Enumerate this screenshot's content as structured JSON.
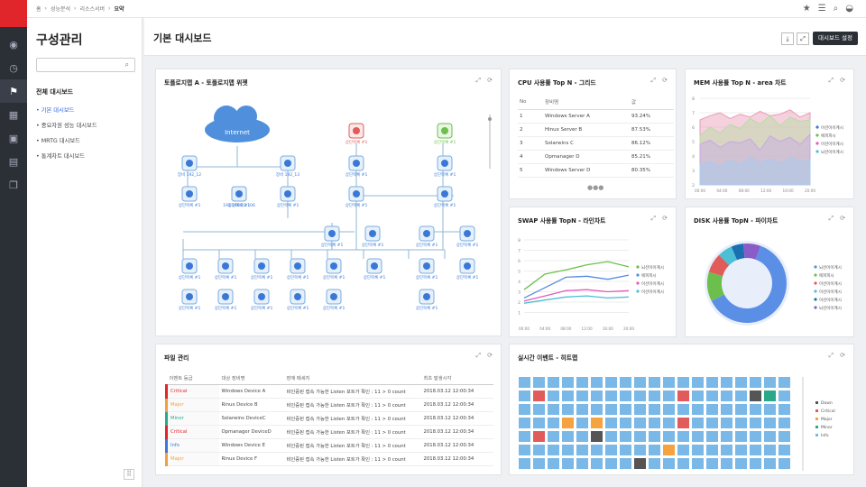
{
  "breadcrumb": [
    "홈",
    "성능분석",
    "리소스서버",
    "요약"
  ],
  "sidebar": {
    "title": "구성관리",
    "search_placeholder": "",
    "section": "전체 대시보드",
    "items": [
      "기본 대시보드",
      "중요자원 성능 대시보드",
      "MRTG 대시보드",
      "통계차트 대시보드"
    ]
  },
  "header": {
    "title": "기본 대시보드",
    "settings_label": "대시보드 설정"
  },
  "topology": {
    "title": "토폴로지맵 A - 토폴로지맵 위젯",
    "cloud": "Internet",
    "nodes": [
      "장비 192_12",
      "장비 192_13",
      "192.168.22.106",
      "상단목록 #1",
      "상단목록 #1",
      "상단목록 #1",
      "상단목록 #1",
      "상단목록 #1",
      "상단목록 #1",
      "상단목록 #1",
      "상단목록 #1",
      "상단목록 #1",
      "상단목록 #1",
      "상단목록 #1",
      "상단목록 #1",
      "상단목록 #1",
      "상단목록 #1",
      "상단목록 #1",
      "상단목록 #1",
      "상단목록 #1",
      "상단목록 #1",
      "상단목록 #1",
      "상단목록 #1",
      "상단목록 #1",
      "상단목록 #1",
      "상단목록 #1",
      "상단목록 #1",
      "상단목록 #1",
      "상단목록 #1",
      "상단목록 #1",
      "상단목록 #1",
      "상단목록 #1",
      "상단목록 #1"
    ]
  },
  "cpu": {
    "title": "CPU 사용률 Top N - 그리드",
    "headers": [
      "No",
      "장비명",
      "값"
    ],
    "rows": [
      [
        "1",
        "Windows Server A",
        "93.24%"
      ],
      [
        "2",
        "Hinux Server B",
        "87.53%"
      ],
      [
        "3",
        "Solarwins C",
        "86.12%"
      ],
      [
        "4",
        "Opmanager D",
        "85.21%"
      ],
      [
        "5",
        "Windows Server D",
        "80.35%"
      ]
    ]
  },
  "mem": {
    "title": "MEM 사용률 Top N - area 차트",
    "legend": [
      "이션이이계시",
      "에피피시",
      "이션이이계시",
      "뇌션이이계시"
    ],
    "ticks": [
      "2",
      "3",
      "4",
      "5",
      "6",
      "7",
      "8"
    ],
    "xticks": [
      "00:00",
      "04:00",
      "08:00",
      "12:00",
      "16:00",
      "20:00"
    ]
  },
  "files": {
    "title": "파일 관리",
    "headers": [
      "이벤트 등급",
      "대상 장비명",
      "장애 메세지",
      "최초 발생시각"
    ],
    "rows": [
      [
        "Critical",
        "Windows Device A",
        "비인증된 접속 가능한 Listen 포트가 확인 : 11 > 0 count",
        "2018.03.12  12:00:34"
      ],
      [
        "Major",
        "Rinux Device B",
        "비인증된 접속 가능한 Listen 포트가 확인 : 11 > 0 count",
        "2018.03.12  12:00:34"
      ],
      [
        "Minor",
        "Solarwins DeviceC",
        "비인증된 접속 가능한 Listen 포트가 확인 : 11 > 0 count",
        "2018.03.12  12:00:34"
      ],
      [
        "Critical",
        "Opmanager DeviceD",
        "비인증된 접속 가능한 Listen 포트가 확인 : 11 > 0 count",
        "2018.03.12  12:00:34"
      ],
      [
        "Info",
        "Windows Device E",
        "비인증된 접속 가능한 Listen 포트가 확인 : 11 > 0 count",
        "2018.03.12  12:00:34"
      ],
      [
        "Major",
        "Rinux Device F",
        "비인증된 접속 가능한 Listen 포트가 확인 : 11 > 0 count",
        "2018.03.12  12:00:34"
      ]
    ],
    "colors": {
      "Critical": "#e0262b",
      "Major": "#f0a040",
      "Minor": "#2aa88a",
      "Info": "#3a78d8"
    }
  },
  "heatmap": {
    "title": "실시간 이벤트 - 히트맵",
    "legend": [
      "Down",
      "Critical",
      "Major",
      "Minor",
      "Info"
    ],
    "colors": {
      "Down": "#555555",
      "Critical": "#e25b5b",
      "Major": "#f4a340",
      "Minor": "#2aa88a",
      "Info": "#7ab8e8"
    }
  },
  "chart_data": [
    {
      "type": "line",
      "title": "SWAP 사용률 TopN - 라인차트",
      "x": [
        "00:00",
        "04:00",
        "08:00",
        "12:00",
        "16:00",
        "20:00"
      ],
      "yticks": [
        "1",
        "2",
        "3",
        "4",
        "5",
        "6",
        "7",
        "8"
      ],
      "ylim": [
        0,
        8
      ],
      "series": [
        {
          "name": "뇌션이이계시",
          "color": "#6cbf4d",
          "values": [
            3.2,
            4.7,
            5.1,
            5.6,
            5.9,
            5.4
          ]
        },
        {
          "name": "에피피시",
          "color": "#5a8be0",
          "values": [
            2.4,
            3.4,
            4.4,
            4.5,
            4.2,
            4.6
          ]
        },
        {
          "name": "이션이이계시",
          "color": "#e25bb8",
          "values": [
            2.1,
            2.6,
            3.1,
            3.2,
            3.0,
            3.1
          ]
        },
        {
          "name": "이션이이계시",
          "color": "#4bbfd6",
          "values": [
            1.9,
            2.2,
            2.5,
            2.6,
            2.4,
            2.5
          ]
        }
      ]
    },
    {
      "type": "pie",
      "title": "DISK 사용률 TopN - 파이차트",
      "series": [
        {
          "name": "뇌션이이계시",
          "value": 62,
          "color": "#5b8fe6"
        },
        {
          "name": "에피피시",
          "value": 12,
          "color": "#6cbf4d"
        },
        {
          "name": "이션이이계시",
          "value": 8,
          "color": "#e25b5b"
        },
        {
          "name": "이션이이계시",
          "value": 6,
          "color": "#4bbfd6"
        },
        {
          "name": "이션이이계시",
          "value": 5,
          "color": "#1a6fb0"
        },
        {
          "name": "뇌션이이계시",
          "value": 7,
          "color": "#8a5cc7"
        }
      ],
      "legend": [
        "뇌션이이계시",
        "에피피시",
        "이션이이계시",
        "이션이이계시",
        "이션이이계시",
        "뇌션이이계시"
      ]
    }
  ]
}
